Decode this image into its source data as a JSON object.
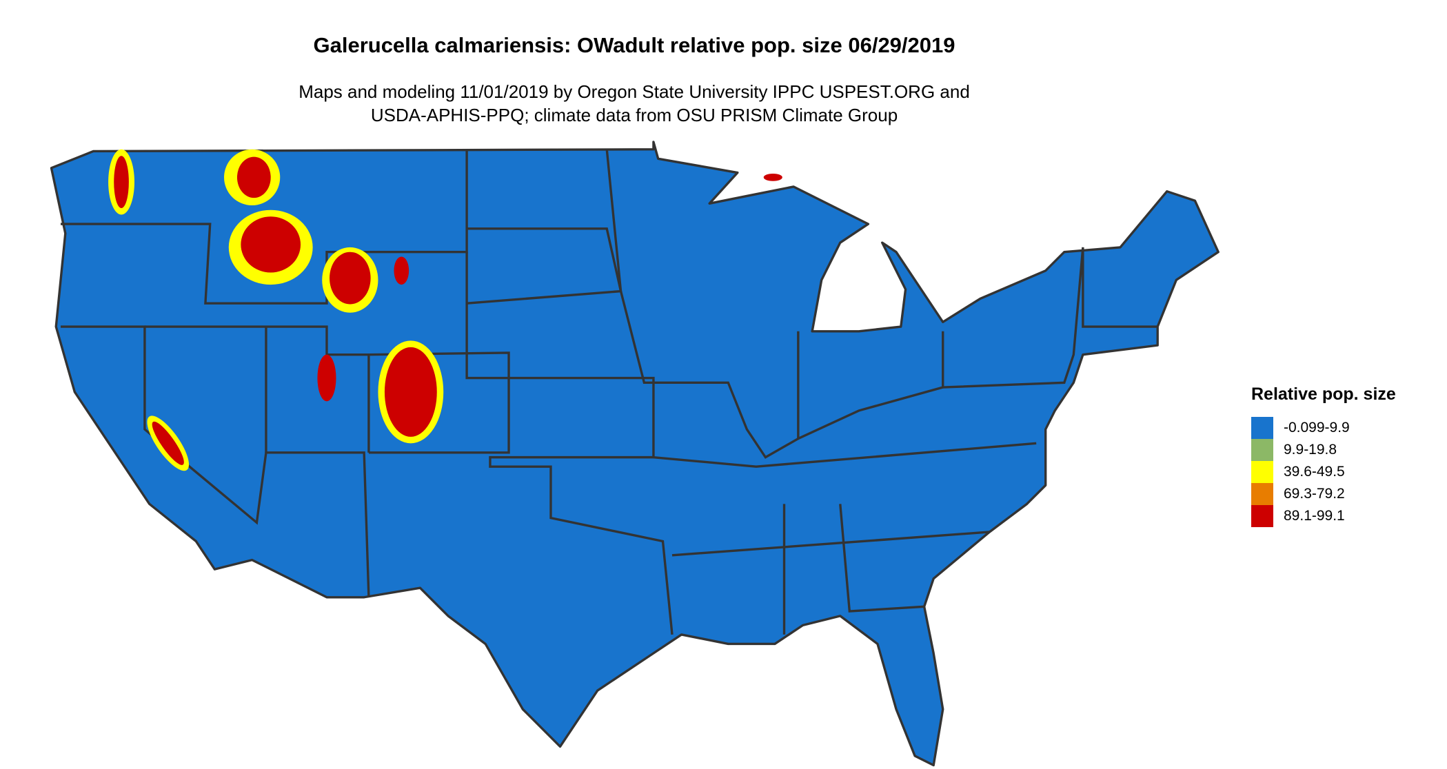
{
  "title": "Galerucella calmariensis: OWadult relative pop. size 06/29/2019",
  "subtitle_line1": "Maps and modeling 11/01/2019 by Oregon State University IPPC USPEST.ORG and",
  "subtitle_line2": "USDA-APHIS-PPQ; climate data from OSU PRISM Climate Group",
  "chart_data": {
    "type": "heatmap",
    "region": "contiguous United States",
    "legend": {
      "title": "Relative pop. size",
      "placement": "right",
      "items": [
        {
          "label": "-0.099-9.9",
          "color": "#1874CD"
        },
        {
          "label": "9.9-19.8",
          "color": "#8CB866"
        },
        {
          "label": "39.6-49.5",
          "color": "#FFFF00"
        },
        {
          "label": "69.3-79.2",
          "color": "#E87D00"
        },
        {
          "label": "89.1-99.1",
          "color": "#CD0000"
        }
      ]
    }
  }
}
